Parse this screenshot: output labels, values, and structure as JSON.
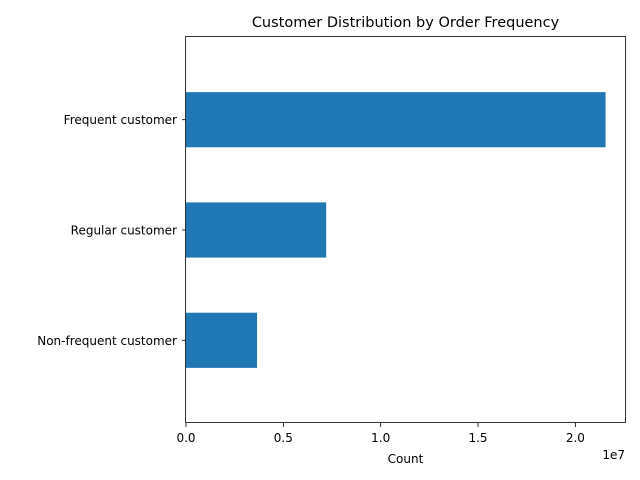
{
  "chart_data": {
    "type": "bar",
    "orientation": "horizontal",
    "title": "Customer Distribution by Order Frequency",
    "xlabel": "Count",
    "ylabel": "",
    "x_offset_text": "1e7",
    "categories": [
      "Frequent customer",
      "Regular customer",
      "Non-frequent customer"
    ],
    "values": [
      21550000,
      7200000,
      3650000
    ],
    "xlim": [
      0,
      22600000
    ],
    "xticks": [
      0,
      5000000,
      10000000,
      15000000,
      20000000
    ],
    "xtick_labels": [
      "0.0",
      "0.5",
      "1.0",
      "1.5",
      "2.0"
    ],
    "bar_color": "#1f77b4",
    "grid": false,
    "legend": "none"
  }
}
